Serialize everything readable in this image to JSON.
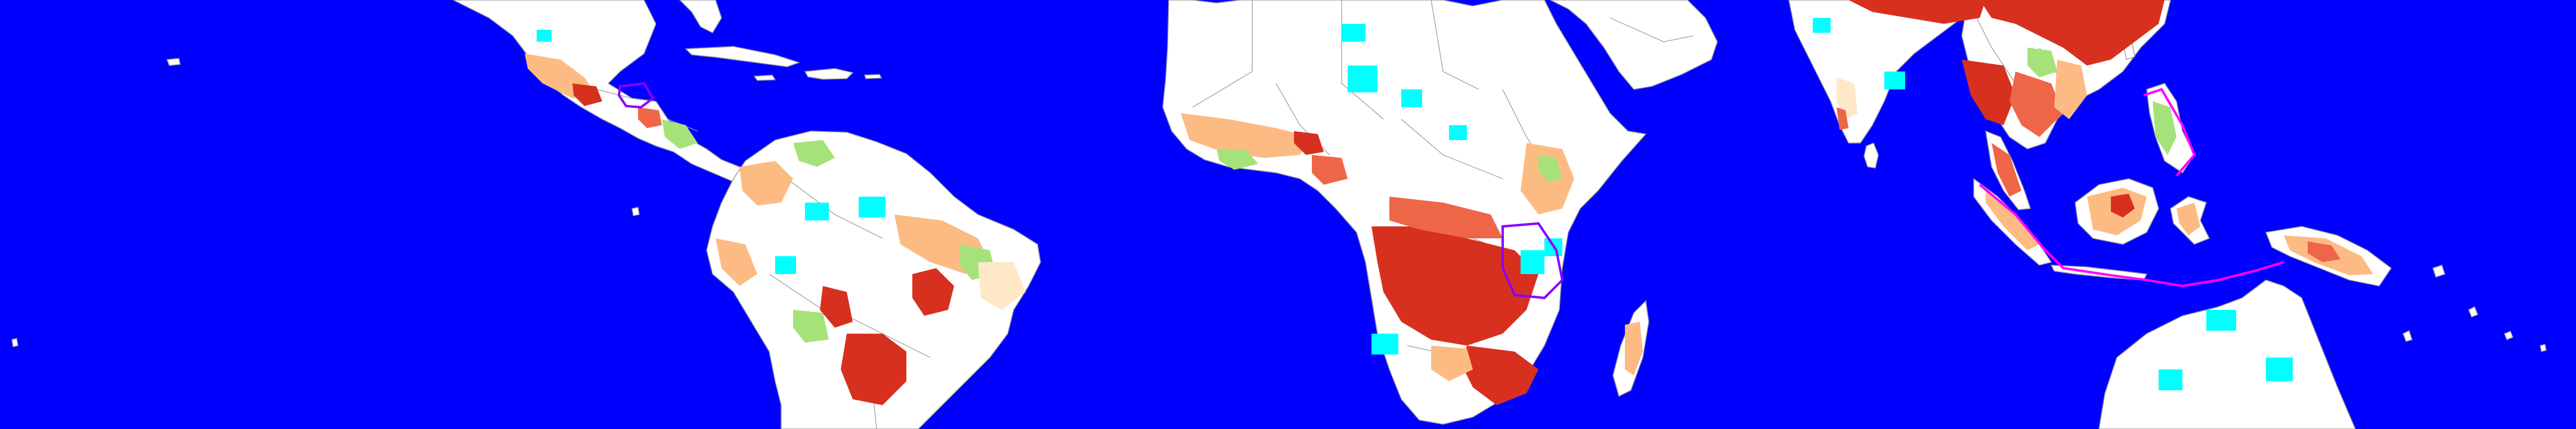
{
  "map": {
    "projection": "equirectangular",
    "extent": "tropics",
    "colors": {
      "ocean": "#0000ff",
      "land": "#ffffff",
      "border": "#9a9a9a",
      "class_highest": "#d7301f",
      "class_high": "#ef6548",
      "class_medium": "#fdbb84",
      "class_low": "#fee8c8",
      "class_green": "#a6e27a",
      "class_cyan": "#00ffff",
      "highlight_outline": "#8a00ff",
      "highlight_glow": "#ff00ff"
    }
  }
}
